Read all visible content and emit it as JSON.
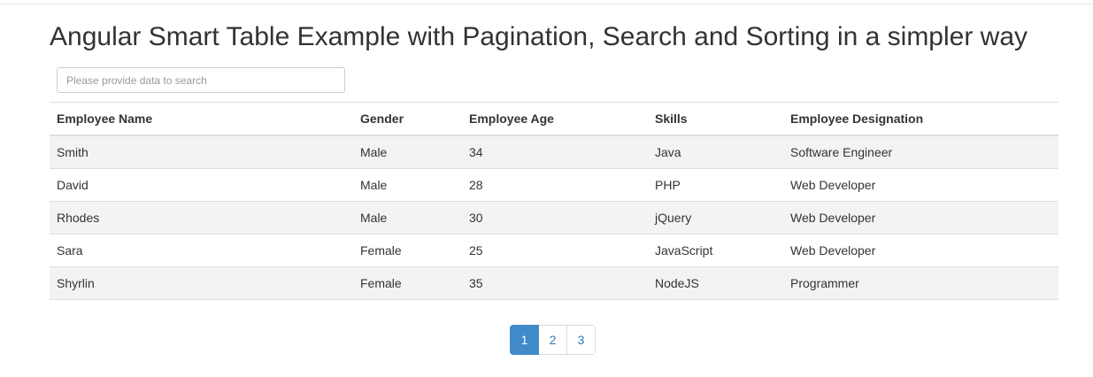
{
  "page": {
    "title": "Angular Smart Table Example with Pagination, Search and Sorting in a simpler way"
  },
  "search": {
    "placeholder": "Please provide data to search",
    "value": ""
  },
  "table": {
    "headers": [
      "Employee Name",
      "Gender",
      "Employee Age",
      "Skills",
      "Employee Designation"
    ],
    "rows": [
      [
        "Smith",
        "Male",
        "34",
        "Java",
        "Software Engineer"
      ],
      [
        "David",
        "Male",
        "28",
        "PHP",
        "Web Developer"
      ],
      [
        "Rhodes",
        "Male",
        "30",
        "jQuery",
        "Web Developer"
      ],
      [
        "Sara",
        "Female",
        "25",
        "JavaScript",
        "Web Developer"
      ],
      [
        "Shyrlin",
        "Female",
        "35",
        "NodeJS",
        "Programmer"
      ]
    ]
  },
  "pagination": {
    "pages": [
      "1",
      "2",
      "3"
    ],
    "active_page": "1"
  },
  "colors": {
    "active_page": "#428bca",
    "link": "#337ab7",
    "striped_row": "#f3f3f3"
  }
}
